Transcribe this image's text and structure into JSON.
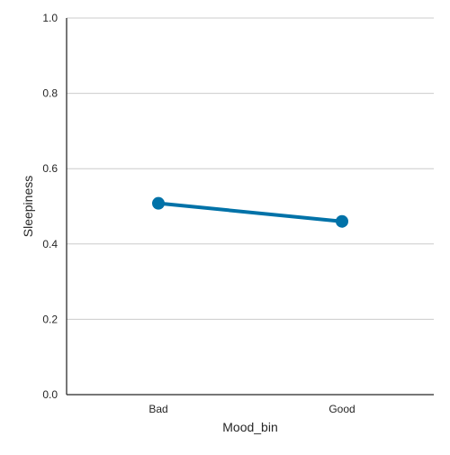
{
  "chart_data": {
    "type": "line",
    "categories": [
      "Bad",
      "Good"
    ],
    "series": [
      {
        "values": [
          0.508,
          0.46
        ],
        "color": "#0072a8"
      }
    ],
    "xlabel": "Mood_bin",
    "ylabel": "Sleepiness",
    "ylim": [
      0,
      1.0
    ],
    "yticks": [
      "0.0",
      "0.2",
      "0.4",
      "0.6",
      "0.8",
      "1.0"
    ],
    "grid": "horizontal",
    "legend": "none",
    "colors": {
      "grid": "#cccccc",
      "axis": "#262626"
    }
  }
}
